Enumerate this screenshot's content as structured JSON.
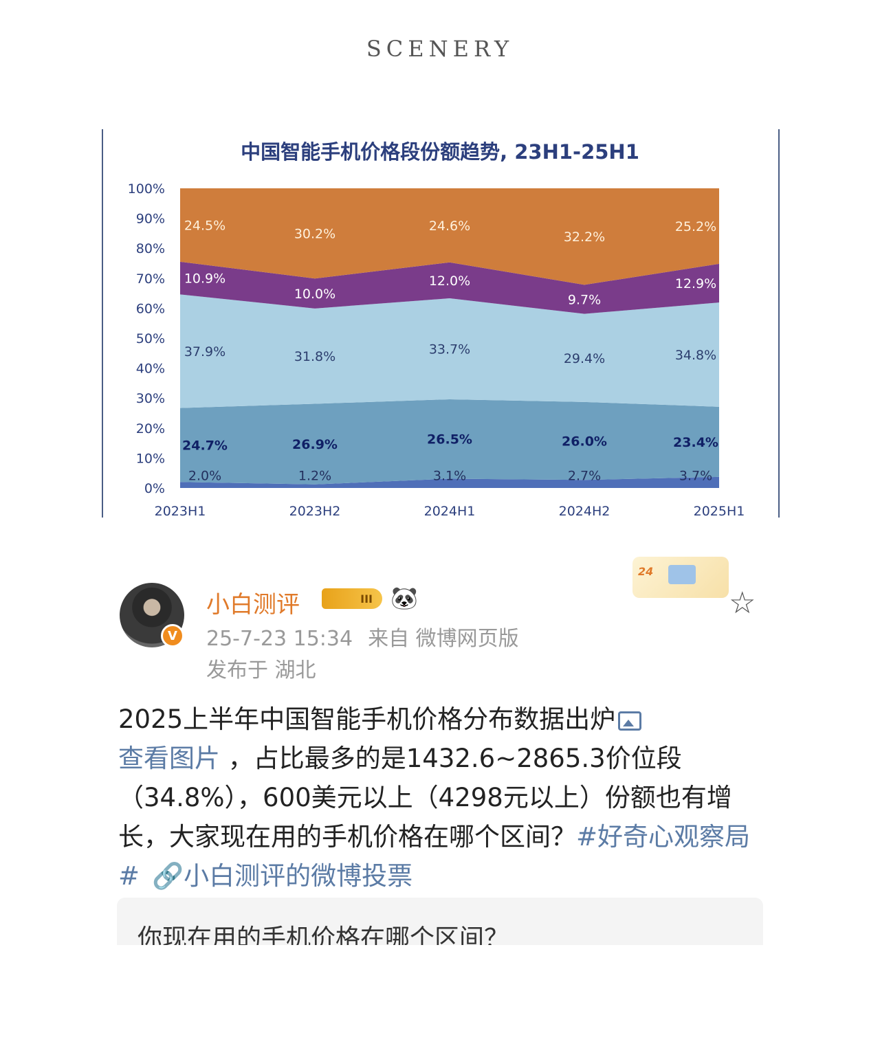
{
  "brand": "SCENERY",
  "chart_data": {
    "type": "area",
    "stacked": true,
    "title": "中国智能手机价格段份额趋势, 23H1-25H1",
    "categories": [
      "2023H1",
      "2023H2",
      "2024H1",
      "2024H2",
      "2025H1"
    ],
    "yticks": [
      "0%",
      "10%",
      "20%",
      "30%",
      "40%",
      "50%",
      "60%",
      "70%",
      "80%",
      "90%",
      "100%"
    ],
    "ylim": [
      0,
      100
    ],
    "series": [
      {
        "values": [
          2.0,
          1.2,
          3.1,
          2.7,
          3.7
        ],
        "labels": [
          "2.0%",
          "1.2%",
          "3.1%",
          "2.7%",
          "3.7%"
        ],
        "color": "#4f6fb8",
        "label_color": "#23305e"
      },
      {
        "values": [
          24.7,
          26.9,
          26.5,
          26.0,
          23.4
        ],
        "labels": [
          "24.7%",
          "26.9%",
          "26.5%",
          "26.0%",
          "23.4%"
        ],
        "color": "#6ea0bf",
        "label_color": "#102066"
      },
      {
        "values": [
          37.9,
          31.8,
          33.7,
          29.4,
          34.8
        ],
        "labels": [
          "37.9%",
          "31.8%",
          "33.7%",
          "29.4%",
          "34.8%"
        ],
        "color": "#abd0e3",
        "label_color": "#2c3e6e"
      },
      {
        "values": [
          10.9,
          10.0,
          12.0,
          9.7,
          12.9
        ],
        "labels": [
          "10.9%",
          "10.0%",
          "12.0%",
          "9.7%",
          "12.9%"
        ],
        "color": "#7a3c8a",
        "label_color": "#ffffff"
      },
      {
        "values": [
          24.5,
          30.2,
          24.6,
          32.2,
          25.2
        ],
        "labels": [
          "24.5%",
          "30.2%",
          "24.6%",
          "32.2%",
          "25.2%"
        ],
        "color": "#cf7d3c",
        "label_color": "#fff1dc"
      }
    ],
    "grid": false,
    "legend": "none"
  },
  "post": {
    "username": "小白测评",
    "level_badge": "III",
    "timestamp": "25-7-23 15:34",
    "source": "来自 微博网页版",
    "location": "发布于 湖北",
    "decor_badge": "24",
    "text_part1": "2025上半年中国智能手机价格分布数据出炉",
    "view_image_link": "查看图片",
    "text_part2": " ，占比最多的是1432.6~2865.3价位段（34.8%），600美元以上（4298元以上）份额也有增长，大家现在用的手机价格在哪个区间？",
    "hashtag": "#好奇心观察局#",
    "poll_link": "小白测评的微博投票",
    "poll_question": "你现在用的手机价格在哪个区间？"
  }
}
